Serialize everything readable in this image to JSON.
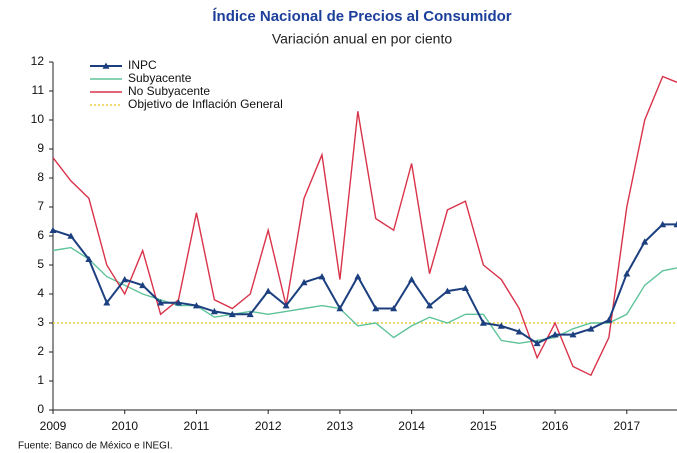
{
  "chart_data": {
    "type": "line",
    "title": "Índice Nacional de Precios al Consumidor",
    "subtitle": "Variación anual en por ciento",
    "source": "Fuente: Banco de México e INEGI.",
    "x": [
      2009,
      2009.25,
      2009.5,
      2009.75,
      2010,
      2010.25,
      2010.5,
      2010.75,
      2011,
      2011.25,
      2011.5,
      2011.75,
      2012,
      2012.25,
      2012.5,
      2012.75,
      2013,
      2013.25,
      2013.5,
      2013.75,
      2014,
      2014.25,
      2014.5,
      2014.75,
      2015,
      2015.25,
      2015.5,
      2015.75,
      2016,
      2016.25,
      2016.5,
      2016.75,
      2017,
      2017.25,
      2017.5,
      2017.7
    ],
    "xlim": [
      2009,
      2017.7
    ],
    "xticks": [
      2009,
      2010,
      2011,
      2012,
      2013,
      2014,
      2015,
      2016,
      2017
    ],
    "ylim": [
      0,
      12
    ],
    "yticks": [
      0,
      1,
      2,
      3,
      4,
      5,
      6,
      7,
      8,
      9,
      10,
      11,
      12
    ],
    "legend": "top-left",
    "series": [
      {
        "name": "INPC",
        "color": "#1c3f7f",
        "marker": "triangle",
        "values": [
          6.2,
          6.0,
          5.2,
          3.7,
          4.5,
          4.3,
          3.7,
          3.7,
          3.6,
          3.4,
          3.3,
          3.3,
          4.1,
          3.6,
          4.4,
          4.6,
          3.5,
          4.6,
          3.5,
          3.5,
          4.5,
          3.6,
          4.1,
          4.2,
          3.0,
          2.9,
          2.7,
          2.3,
          2.6,
          2.6,
          2.8,
          3.1,
          4.7,
          5.8,
          6.4,
          6.4
        ]
      },
      {
        "name": "Subyacente",
        "color": "#5fc39a",
        "values": [
          5.5,
          5.6,
          5.2,
          4.6,
          4.3,
          4.0,
          3.8,
          3.6,
          3.6,
          3.2,
          3.3,
          3.4,
          3.3,
          3.4,
          3.5,
          3.6,
          3.5,
          2.9,
          3.0,
          2.5,
          2.9,
          3.2,
          3.0,
          3.3,
          3.3,
          2.4,
          2.3,
          2.4,
          2.5,
          2.8,
          3.0,
          3.0,
          3.3,
          4.3,
          4.8,
          4.9
        ]
      },
      {
        "name": "No Subyacente",
        "color": "#d9334a",
        "values": [
          8.7,
          7.9,
          7.3,
          5.0,
          4.0,
          5.5,
          3.3,
          3.8,
          6.8,
          3.8,
          3.5,
          4.0,
          6.2,
          3.6,
          7.3,
          8.8,
          4.5,
          10.3,
          6.6,
          6.2,
          8.5,
          4.7,
          6.9,
          7.2,
          5.0,
          4.5,
          3.5,
          1.8,
          3.0,
          1.5,
          1.2,
          2.5,
          7.0,
          10.0,
          11.5,
          11.3
        ]
      },
      {
        "name": "Objetivo de Inflación General",
        "color": "#e8cf3a",
        "dash": "dotted",
        "values": [
          3,
          3,
          3,
          3,
          3,
          3,
          3,
          3,
          3,
          3,
          3,
          3,
          3,
          3,
          3,
          3,
          3,
          3,
          3,
          3,
          3,
          3,
          3,
          3,
          3,
          3,
          3,
          3,
          3,
          3,
          3,
          3,
          3,
          3,
          3,
          3
        ]
      }
    ]
  }
}
